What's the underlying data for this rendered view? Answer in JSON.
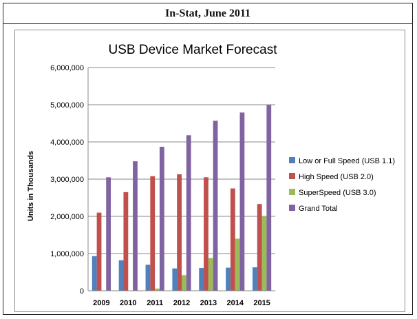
{
  "caption": "In-Stat, June 2011",
  "chart_data": {
    "type": "bar",
    "title": "USB Device Market Forecast",
    "xlabel": "",
    "ylabel": "Units in Thousands",
    "ylim": [
      0,
      6000000
    ],
    "yticks": [
      "0",
      "1,000,000",
      "2,000,000",
      "3,000,000",
      "4,000,000",
      "5,000,000",
      "6,000,000"
    ],
    "grid": true,
    "legend_position": "right",
    "categories": [
      "2009",
      "2010",
      "2011",
      "2012",
      "2013",
      "2014",
      "2015"
    ],
    "series": [
      {
        "name": "Low or Full Speed (USB 1.1)",
        "color": "#4f81bd",
        "values": [
          930000,
          820000,
          700000,
          600000,
          610000,
          620000,
          630000
        ]
      },
      {
        "name": "High Speed (USB 2.0)",
        "color": "#c0504d",
        "values": [
          2100000,
          2650000,
          3080000,
          3130000,
          3050000,
          2750000,
          2330000
        ]
      },
      {
        "name": "SuperSpeed (USB 3.0)",
        "color": "#9bbb59",
        "values": [
          0,
          0,
          60000,
          420000,
          880000,
          1400000,
          2000000
        ]
      },
      {
        "name": "Grand Total",
        "color": "#8064a2",
        "values": [
          3050000,
          3480000,
          3870000,
          4180000,
          4570000,
          4790000,
          4990000
        ]
      }
    ]
  }
}
